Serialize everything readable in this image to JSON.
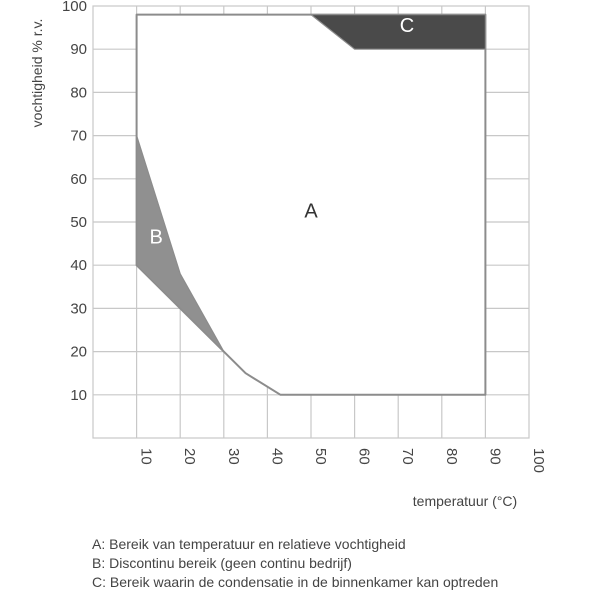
{
  "chart_data": {
    "type": "area",
    "xlabel": "temperatuur (°C)",
    "ylabel": "vochtigheid % r.v.",
    "xlim": [
      0,
      100
    ],
    "ylim": [
      0,
      100
    ],
    "x_ticks": [
      "10",
      "20",
      "30",
      "40",
      "50",
      "60",
      "70",
      "80",
      "90",
      "100"
    ],
    "y_ticks": [
      "10",
      "20",
      "30",
      "40",
      "50",
      "60",
      "70",
      "80",
      "90",
      "100"
    ],
    "grid": true,
    "regions": [
      {
        "label": "A",
        "fill": "#ffffff",
        "points": [
          [
            10,
            98
          ],
          [
            90,
            98
          ],
          [
            90,
            10
          ],
          [
            43,
            10
          ],
          [
            35,
            15
          ],
          [
            30,
            20
          ],
          [
            10,
            40
          ]
        ]
      },
      {
        "label": "B",
        "fill": "#909090",
        "points": [
          [
            10,
            70
          ],
          [
            20,
            38
          ],
          [
            30,
            20
          ],
          [
            10,
            40
          ]
        ]
      },
      {
        "label": "C",
        "fill": "#4a4a4a",
        "points": [
          [
            50,
            98
          ],
          [
            90,
            98
          ],
          [
            90,
            90
          ],
          [
            60,
            90
          ]
        ]
      }
    ],
    "region_label_positions": [
      {
        "label": "A",
        "x": 50,
        "y": 51
      },
      {
        "label": "B",
        "x": 14.5,
        "y": 45
      },
      {
        "label": "C",
        "x": 72,
        "y": 94
      }
    ]
  },
  "legend": [
    "A: Bereik van temperatuur en relatieve vochtigheid",
    "B: Discontinu bereik (geen continu bedrijf)",
    "C: Bereik waarin de condensatie in de binnenkamer kan optreden"
  ],
  "colors": {
    "grid": "#c8c8c8",
    "outline": "#8c8c8c",
    "background": "#ffffff"
  }
}
